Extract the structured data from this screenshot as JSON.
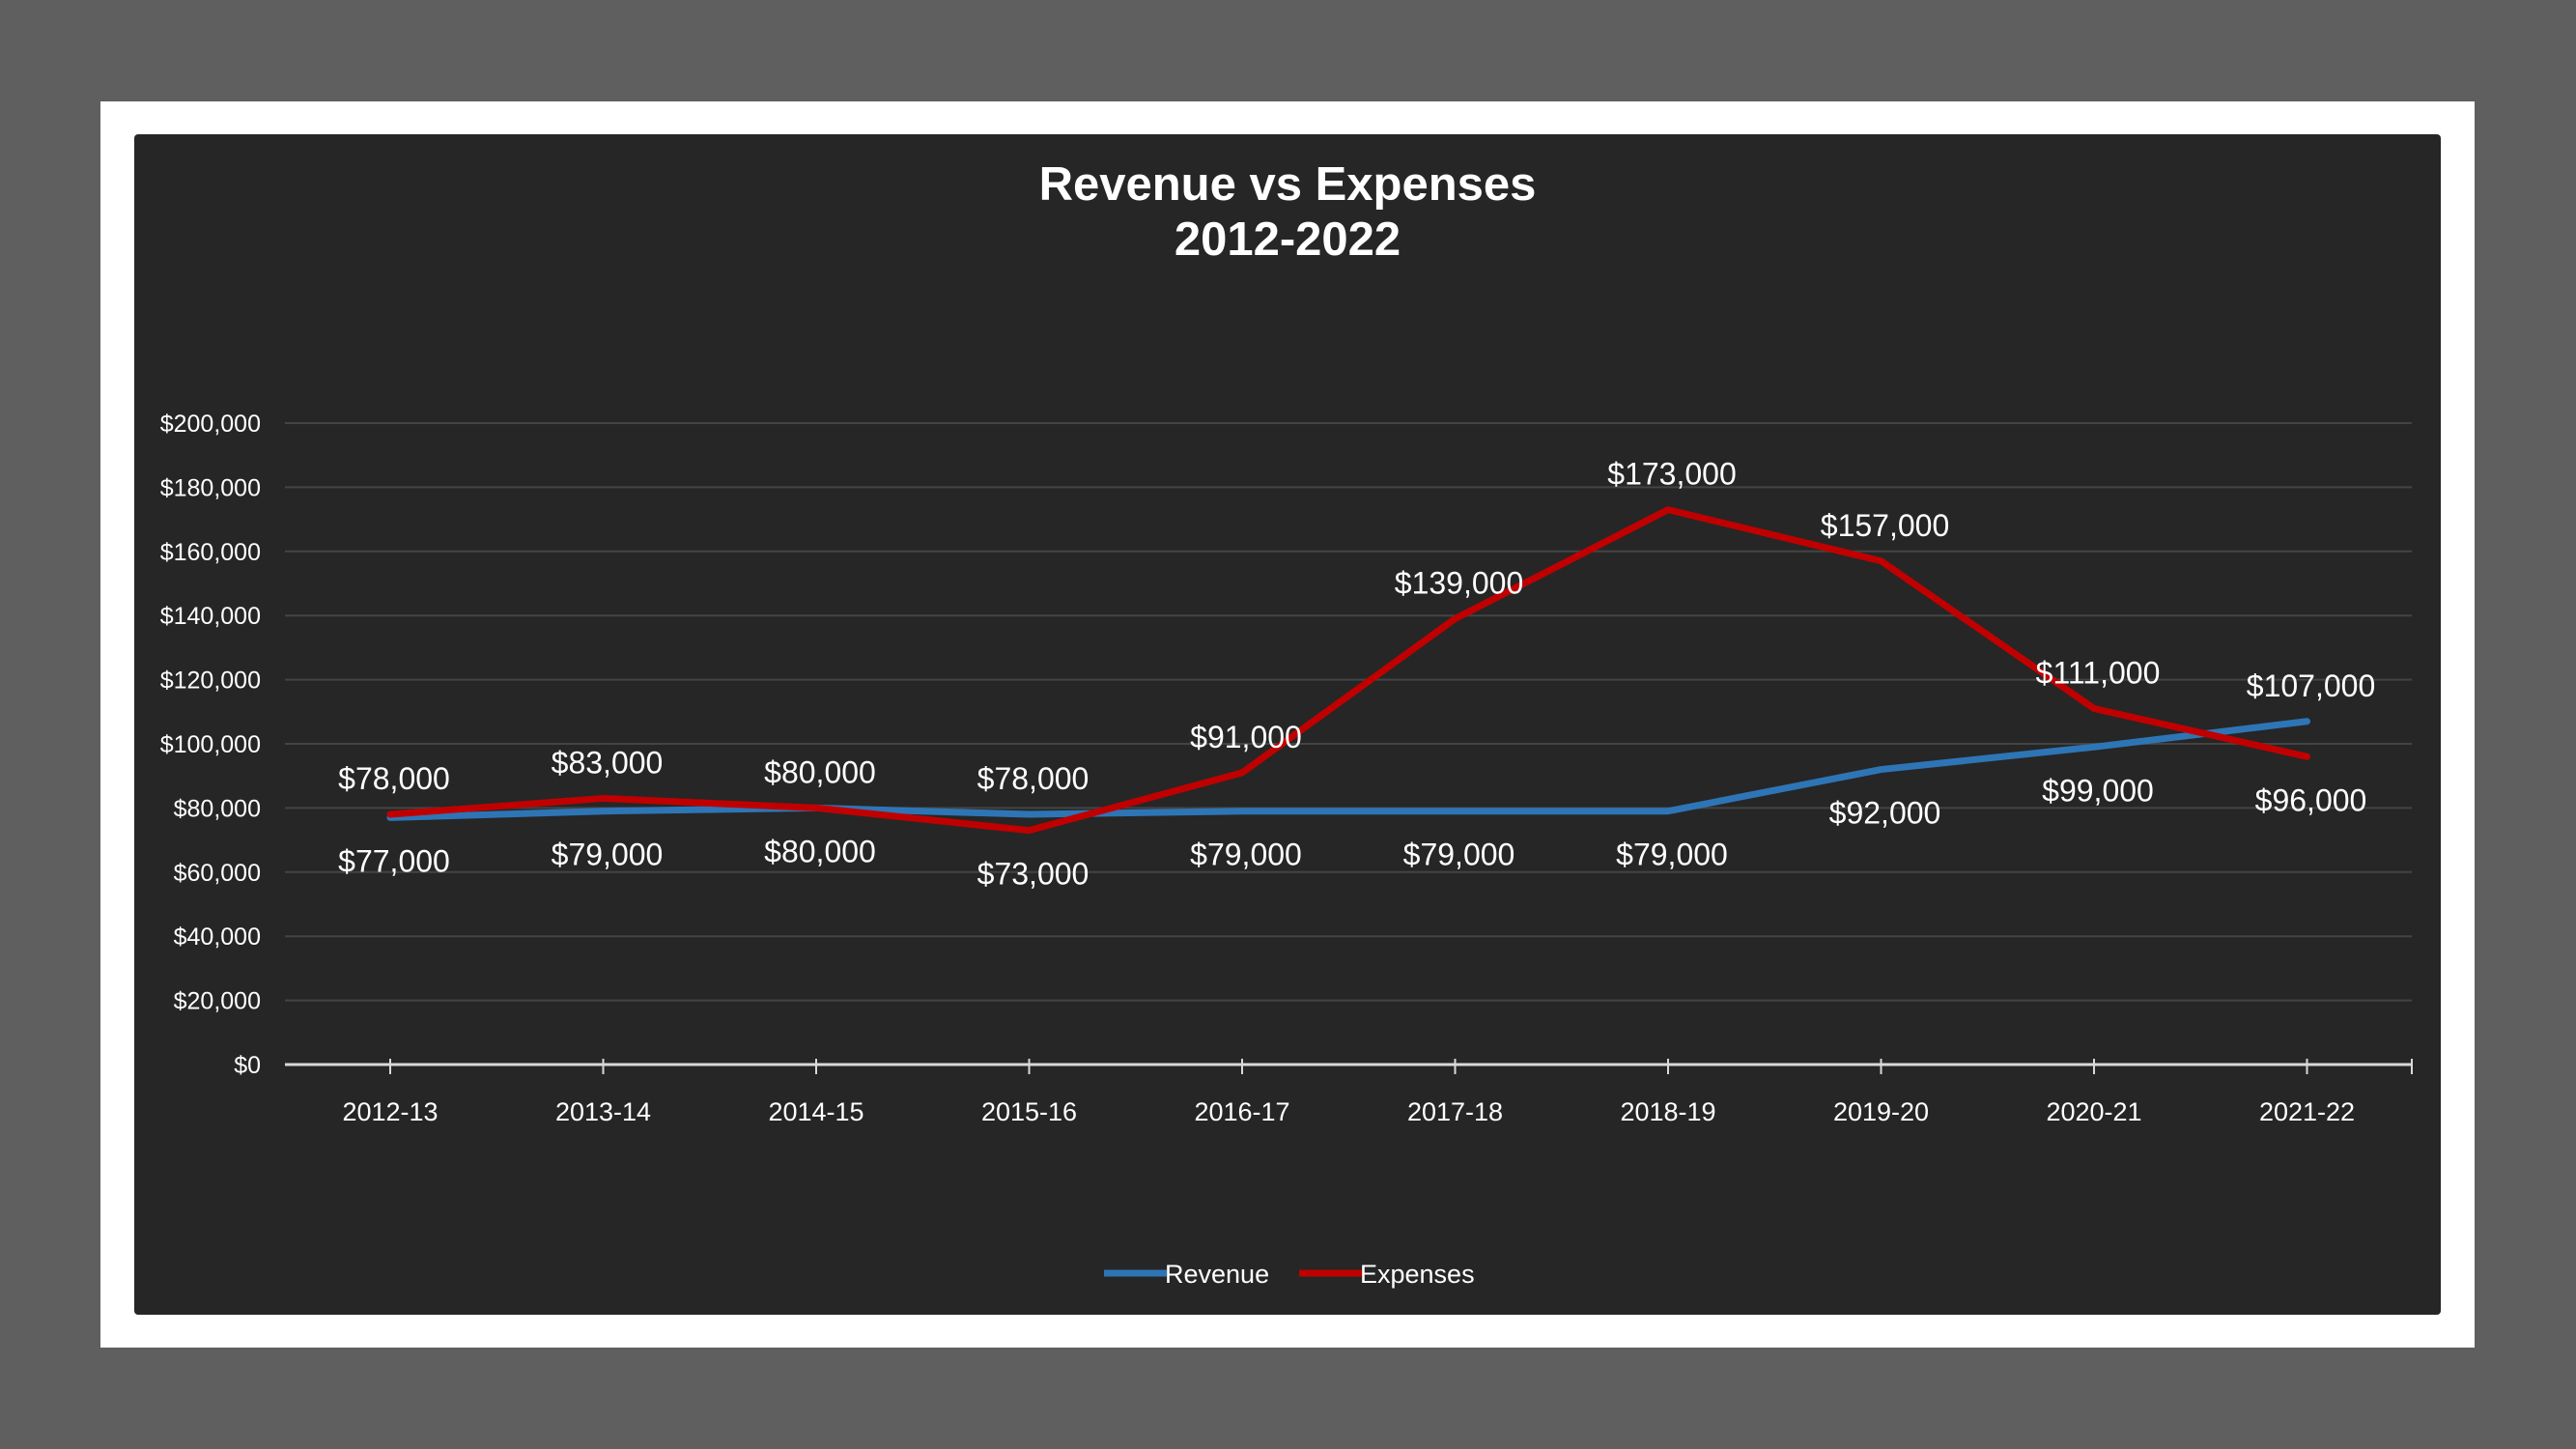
{
  "chart_data": {
    "type": "line",
    "title": "Revenue vs Expenses",
    "subtitle": "2012-2022",
    "categories": [
      "2012-13",
      "2013-14",
      "2014-15",
      "2015-16",
      "2016-17",
      "2017-18",
      "2018-19",
      "2019-20",
      "2020-21",
      "2021-22"
    ],
    "series": [
      {
        "name": "Revenue",
        "color": "#2e75b6",
        "values": [
          77000,
          79000,
          80000,
          78000,
          79000,
          79000,
          79000,
          92000,
          99000,
          107000
        ],
        "labels": [
          "$77,000",
          "$79,000",
          "$80,000",
          "$78,000",
          "$79,000",
          "$79,000",
          "$79,000",
          "$92,000",
          "$99,000",
          "$107,000"
        ],
        "label_pos": [
          "below",
          "below",
          "below",
          "above",
          "below",
          "below",
          "below",
          "below",
          "below",
          "above"
        ]
      },
      {
        "name": "Expenses",
        "color": "#c00000",
        "values": [
          78000,
          83000,
          80000,
          73000,
          91000,
          139000,
          173000,
          157000,
          111000,
          96000
        ],
        "labels": [
          "$78,000",
          "$83,000",
          "$80,000",
          "$73,000",
          "$91,000",
          "$139,000",
          "$173,000",
          "$157,000",
          "$111,000",
          "$96,000"
        ],
        "label_pos": [
          "above",
          "above",
          "above",
          "below",
          "above",
          "above",
          "above",
          "above",
          "above",
          "below"
        ]
      }
    ],
    "ylim": [
      0,
      200000
    ],
    "yticks": [
      0,
      20000,
      40000,
      60000,
      80000,
      100000,
      120000,
      140000,
      160000,
      180000,
      200000
    ],
    "ytick_labels": [
      "$0",
      "$20,000",
      "$40,000",
      "$60,000",
      "$80,000",
      "$100,000",
      "$120,000",
      "$140,000",
      "$160,000",
      "$180,000",
      "$200,000"
    ],
    "grid": true,
    "legend": "bottom"
  }
}
